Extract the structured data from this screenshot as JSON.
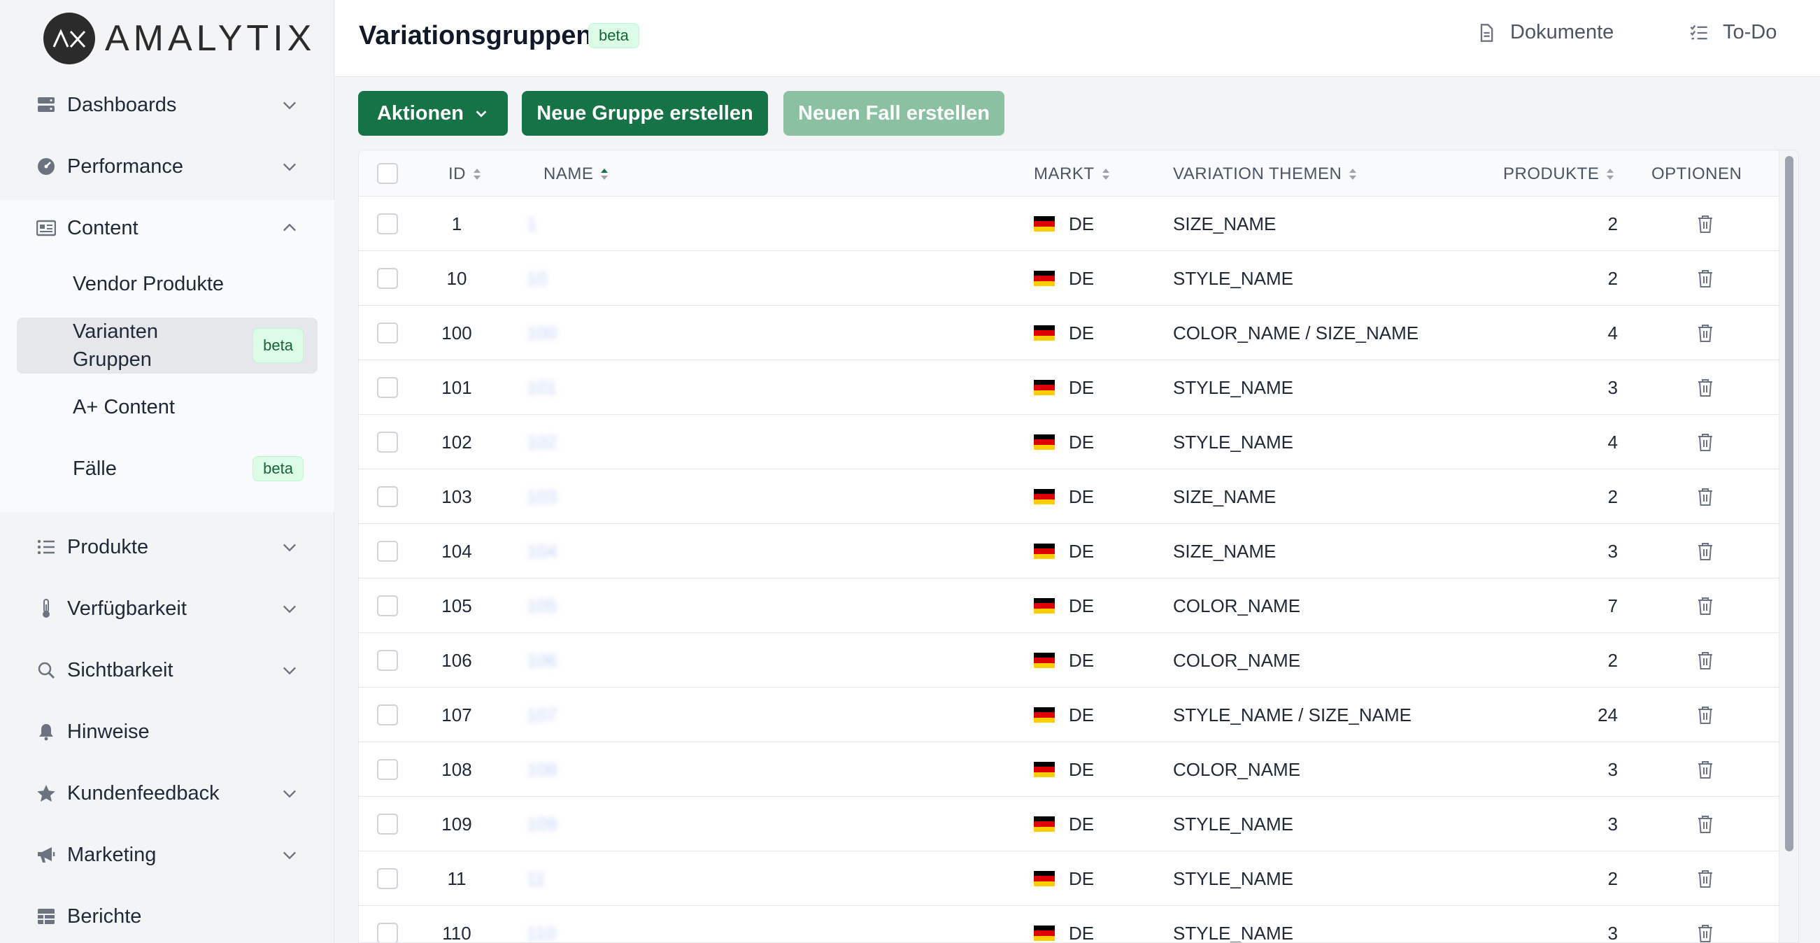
{
  "brand": {
    "name": "AMALYTIX"
  },
  "sidebar": {
    "items": [
      {
        "label": "Dashboards",
        "icon": "server-icon",
        "expandable": true
      },
      {
        "label": "Performance",
        "icon": "gauge-icon",
        "expandable": true
      },
      {
        "label": "Content",
        "icon": "id-card-icon",
        "expandable": true,
        "expanded": true
      },
      {
        "label": "Produkte",
        "icon": "list-icon",
        "expandable": true
      },
      {
        "label": "Verfügbarkeit",
        "icon": "thermometer-icon",
        "expandable": true
      },
      {
        "label": "Sichtbarkeit",
        "icon": "search-icon",
        "expandable": true
      },
      {
        "label": "Hinweise",
        "icon": "bell-icon",
        "expandable": false
      },
      {
        "label": "Kundenfeedback",
        "icon": "star-icon",
        "expandable": true
      },
      {
        "label": "Marketing",
        "icon": "megaphone-icon",
        "expandable": true
      },
      {
        "label": "Berichte",
        "icon": "table-icon",
        "expandable": false
      }
    ],
    "content_sub": [
      {
        "label": "Vendor Produkte"
      },
      {
        "label_line1": "Varianten",
        "label_line2": "Gruppen",
        "badge": "beta",
        "active": true
      },
      {
        "label": "A+ Content"
      },
      {
        "label": "Fälle",
        "badge": "beta"
      }
    ]
  },
  "header": {
    "title": "Variationsgruppen",
    "badge": "beta",
    "links": [
      {
        "label": "Dokumente",
        "icon": "document-icon"
      },
      {
        "label": "To-Do",
        "icon": "checklist-icon"
      }
    ]
  },
  "actions": {
    "aktionen": "Aktionen",
    "new_group": "Neue Gruppe erstellen",
    "new_case": "Neuen Fall erstellen"
  },
  "table": {
    "columns": {
      "id": "ID",
      "name": "NAME",
      "market": "MARKT",
      "themes": "VARIATION THEMEN",
      "products": "PRODUKTE",
      "options": "OPTIONEN"
    },
    "rows": [
      {
        "id": "1",
        "name": "1",
        "market": "DE",
        "theme": "SIZE_NAME",
        "products": "2"
      },
      {
        "id": "10",
        "name": "10",
        "market": "DE",
        "theme": "STYLE_NAME",
        "products": "2"
      },
      {
        "id": "100",
        "name": "100",
        "market": "DE",
        "theme": "COLOR_NAME / SIZE_NAME",
        "products": "4"
      },
      {
        "id": "101",
        "name": "101",
        "market": "DE",
        "theme": "STYLE_NAME",
        "products": "3"
      },
      {
        "id": "102",
        "name": "102",
        "market": "DE",
        "theme": "STYLE_NAME",
        "products": "4"
      },
      {
        "id": "103",
        "name": "103",
        "market": "DE",
        "theme": "SIZE_NAME",
        "products": "2"
      },
      {
        "id": "104",
        "name": "104",
        "market": "DE",
        "theme": "SIZE_NAME",
        "products": "3"
      },
      {
        "id": "105",
        "name": "105",
        "market": "DE",
        "theme": "COLOR_NAME",
        "products": "7"
      },
      {
        "id": "106",
        "name": "106",
        "market": "DE",
        "theme": "COLOR_NAME",
        "products": "2"
      },
      {
        "id": "107",
        "name": "107",
        "market": "DE",
        "theme": "STYLE_NAME / SIZE_NAME",
        "products": "24"
      },
      {
        "id": "108",
        "name": "108",
        "market": "DE",
        "theme": "COLOR_NAME",
        "products": "3"
      },
      {
        "id": "109",
        "name": "109",
        "market": "DE",
        "theme": "STYLE_NAME",
        "products": "3"
      },
      {
        "id": "11",
        "name": "11",
        "market": "DE",
        "theme": "STYLE_NAME",
        "products": "2"
      },
      {
        "id": "110",
        "name": "110",
        "market": "DE",
        "theme": "STYLE_NAME",
        "products": "3"
      }
    ]
  },
  "colors": {
    "primary": "#157347",
    "primary_disabled": "#8cc0a3",
    "badge_bg": "#dcfce7",
    "badge_text": "#166534"
  }
}
